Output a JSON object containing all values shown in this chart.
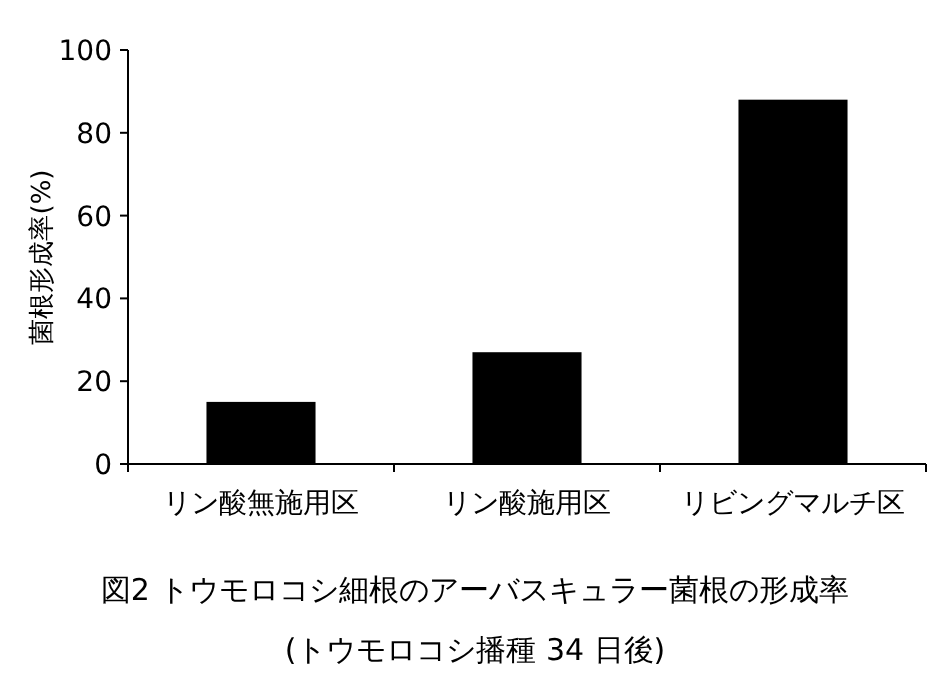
{
  "chart_data": {
    "type": "bar",
    "title": "図2 トウモロコシ細根のアーバスキュラー菌根の形成率",
    "subtitle": "(トウモロコシ播種 34 日後)",
    "ylabel": "菌根形成率(%)",
    "categories": [
      "リン酸無施用区",
      "リン酸施用区",
      "リビングマルチ区"
    ],
    "values": [
      15,
      27,
      88
    ],
    "color": "#000000",
    "ylim": [
      0,
      100
    ],
    "yticks": [
      0,
      20,
      40,
      60,
      80,
      100
    ],
    "grid": false
  }
}
